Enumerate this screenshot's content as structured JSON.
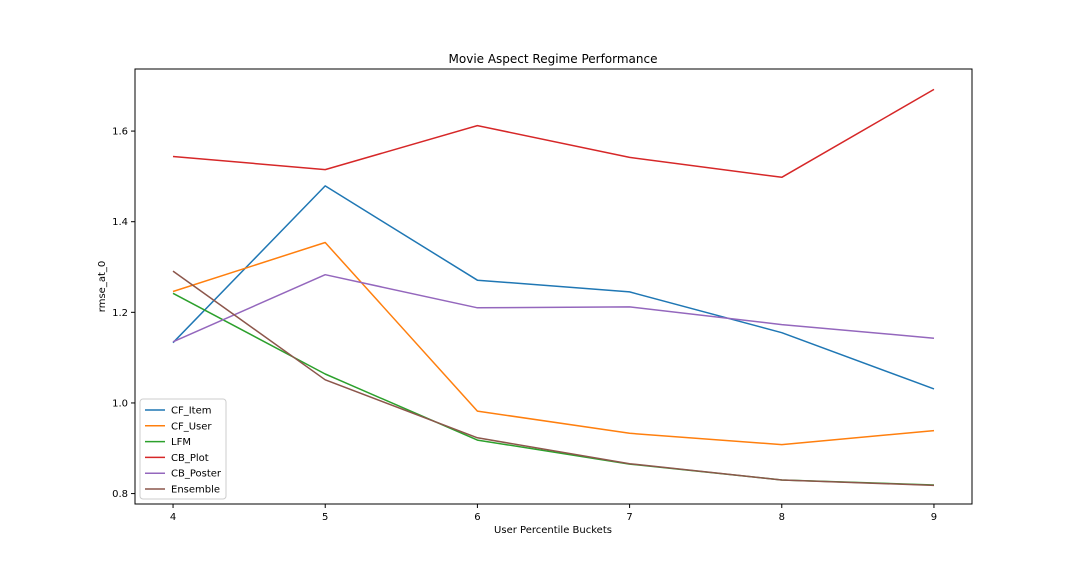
{
  "chart_data": {
    "type": "line",
    "title": "Movie Aspect Regime Performance",
    "xlabel": "User Percentile Buckets",
    "ylabel": "rmse_at_0",
    "x": [
      4,
      5,
      6,
      7,
      8,
      9
    ],
    "xlim": [
      3.75,
      9.25
    ],
    "ylim": [
      0.777,
      1.737
    ],
    "xticks": [
      4,
      5,
      6,
      7,
      8,
      9
    ],
    "yticks": [
      0.8,
      1.0,
      1.2,
      1.4,
      1.6
    ],
    "ytick_labels": [
      "0.8",
      "1.0",
      "1.2",
      "1.4",
      "1.6"
    ],
    "legend_position": "lower-left",
    "grid": false,
    "series": [
      {
        "name": "CF_Item",
        "color": "#1f77b4",
        "values": [
          1.133,
          1.479,
          1.271,
          1.245,
          1.155,
          1.031
        ]
      },
      {
        "name": "CF_User",
        "color": "#ff7f0e",
        "values": [
          1.246,
          1.354,
          0.982,
          0.933,
          0.908,
          0.939
        ]
      },
      {
        "name": "LFM",
        "color": "#2ca02c",
        "values": [
          1.242,
          1.064,
          0.918,
          0.865,
          0.83,
          0.819
        ]
      },
      {
        "name": "CB_Plot",
        "color": "#d62728",
        "values": [
          1.544,
          1.515,
          1.612,
          1.542,
          1.498,
          1.692
        ]
      },
      {
        "name": "CB_Poster",
        "color": "#9467bd",
        "values": [
          1.135,
          1.283,
          1.21,
          1.212,
          1.173,
          1.143
        ]
      },
      {
        "name": "Ensemble",
        "color": "#8c564b",
        "values": [
          1.291,
          1.051,
          0.923,
          0.866,
          0.83,
          0.818
        ]
      }
    ]
  }
}
